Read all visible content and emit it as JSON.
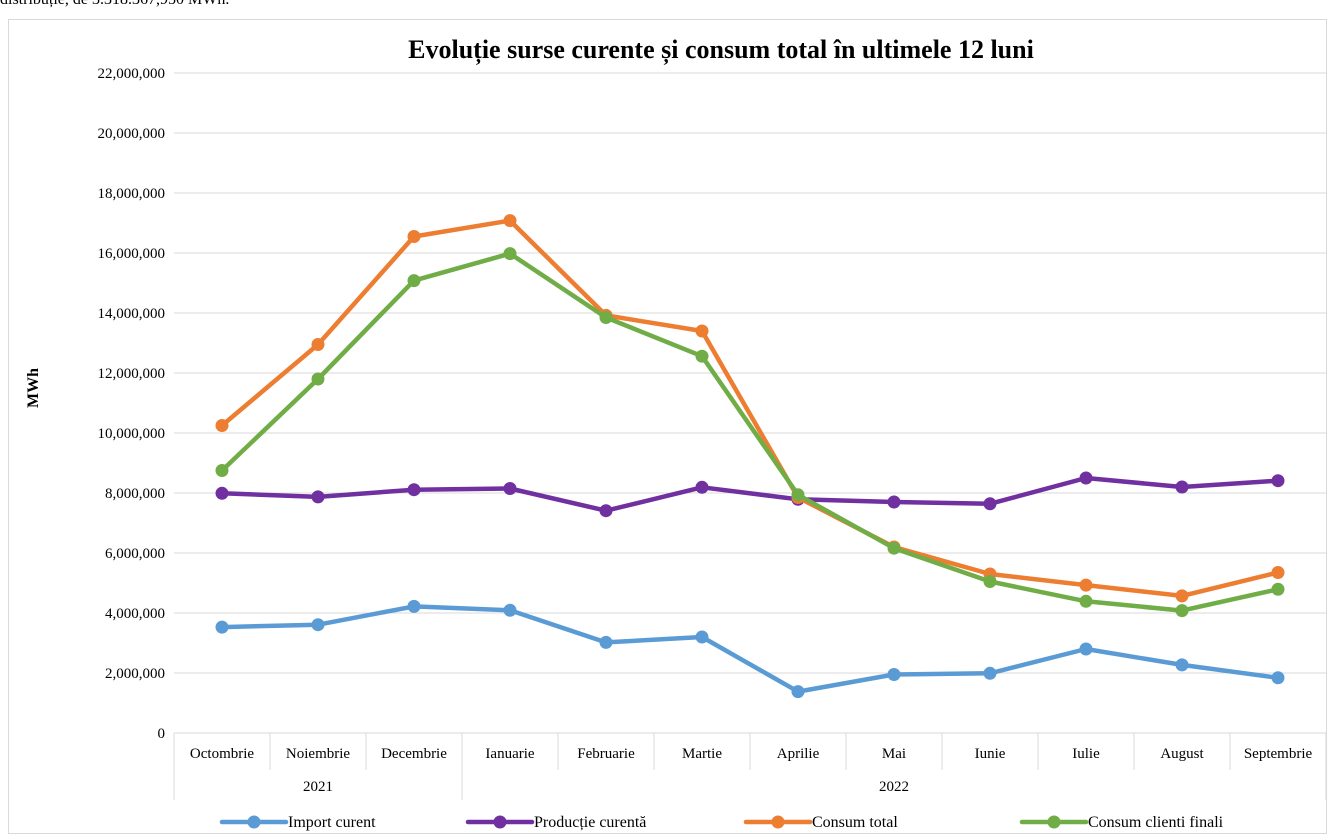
{
  "top_text": "distribuție, de 3.318.367,950 MWh.",
  "chart_data": {
    "type": "line",
    "title": "Evoluție surse curente și consum total în ultimele 12 luni",
    "xlabel": "",
    "ylabel": "MWh",
    "ylim": [
      0,
      22000000
    ],
    "y_ticks": [
      0,
      2000000,
      4000000,
      6000000,
      8000000,
      10000000,
      12000000,
      14000000,
      16000000,
      18000000,
      20000000,
      22000000
    ],
    "y_tick_labels": [
      "0",
      "2,000,000",
      "4,000,000",
      "6,000,000",
      "8,000,000",
      "10,000,000",
      "12,000,000",
      "14,000,000",
      "16,000,000",
      "18,000,000",
      "20,000,000",
      "22,000,000"
    ],
    "categories": [
      "Octombrie",
      "Noiembrie",
      "Decembrie",
      "Ianuarie",
      "Februarie",
      "Martie",
      "Aprilie",
      "Mai",
      "Iunie",
      "Iulie",
      "August",
      "Septembrie"
    ],
    "category_groups": [
      {
        "label": "2021",
        "start": 0,
        "end": 2
      },
      {
        "label": "2022",
        "start": 3,
        "end": 11
      }
    ],
    "grid": true,
    "legend_position": "bottom",
    "series": [
      {
        "name": "Import curent",
        "color": "#5B9BD5",
        "values": [
          3530000,
          3610000,
          4220000,
          4090000,
          3020000,
          3200000,
          1380000,
          1950000,
          1990000,
          2800000,
          2270000,
          1840000
        ]
      },
      {
        "name": "Producție curentă",
        "color": "#7030A0",
        "values": [
          7990000,
          7870000,
          8110000,
          8150000,
          7410000,
          8190000,
          7790000,
          7700000,
          7640000,
          8500000,
          8200000,
          8410000
        ]
      },
      {
        "name": "Consum total",
        "color": "#ED7D31",
        "values": [
          10250000,
          12950000,
          16550000,
          17080000,
          13920000,
          13400000,
          7850000,
          6200000,
          5300000,
          4930000,
          4570000,
          5350000
        ]
      },
      {
        "name": "Consum clienti finali",
        "color": "#70AD47",
        "values": [
          8750000,
          11800000,
          15080000,
          15980000,
          13850000,
          12560000,
          7940000,
          6160000,
          5050000,
          4390000,
          4080000,
          4790000
        ]
      }
    ]
  }
}
